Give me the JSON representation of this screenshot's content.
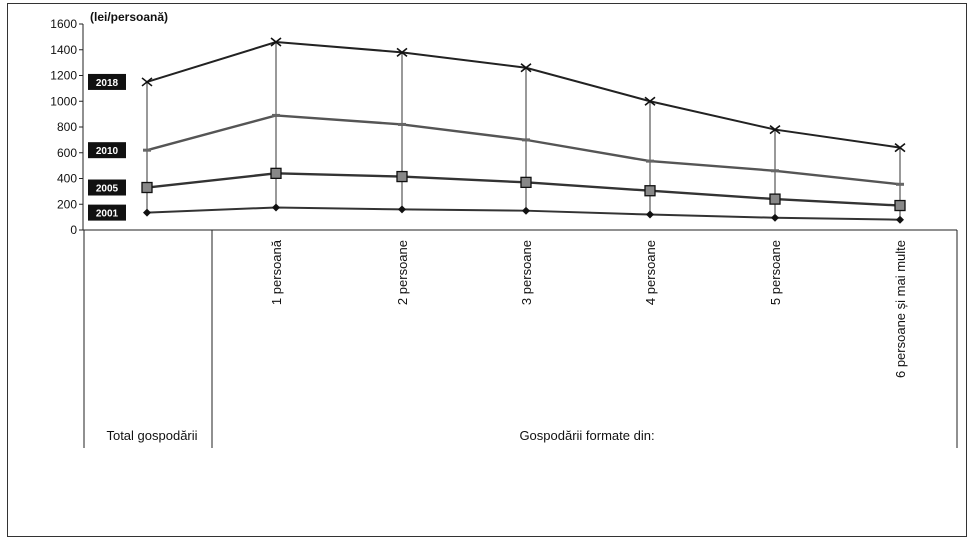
{
  "chart_data": {
    "type": "line",
    "unit_label": "(lei/persoană)",
    "y_ticks": [
      "1600",
      "1400",
      "1200",
      "1000",
      "800",
      "600",
      "400",
      "200",
      "0"
    ],
    "ylim": [
      0,
      1600
    ],
    "grid": false,
    "categories": [
      "Total gospodării",
      "1 persoană",
      "2 persoane",
      "3 persoane",
      "4 persoane",
      "5 persoane",
      "6 persoane și mai multe"
    ],
    "category_labels_rotated": [
      "1 persoană",
      "2 persoane",
      "3 persoane",
      "4 persoane",
      "5 persoane",
      "6 persoane și mai multe"
    ],
    "group_labels": {
      "total": "Total gospodării",
      "formed": "Gospodării formate din:"
    },
    "series": [
      {
        "name": "2018",
        "marker": "x",
        "color": "#222222",
        "values": [
          1150,
          1460,
          1380,
          1260,
          1000,
          780,
          640
        ]
      },
      {
        "name": "2010",
        "marker": "dash",
        "color": "#555555",
        "values": [
          620,
          890,
          820,
          700,
          535,
          460,
          355
        ]
      },
      {
        "name": "2005",
        "marker": "square",
        "color": "#333333",
        "values": [
          330,
          440,
          415,
          370,
          305,
          240,
          190
        ]
      },
      {
        "name": "2001",
        "marker": "diamond",
        "color": "#333333",
        "values": [
          135,
          175,
          160,
          150,
          120,
          95,
          80
        ]
      }
    ],
    "legend_placement": "left, at series start"
  }
}
